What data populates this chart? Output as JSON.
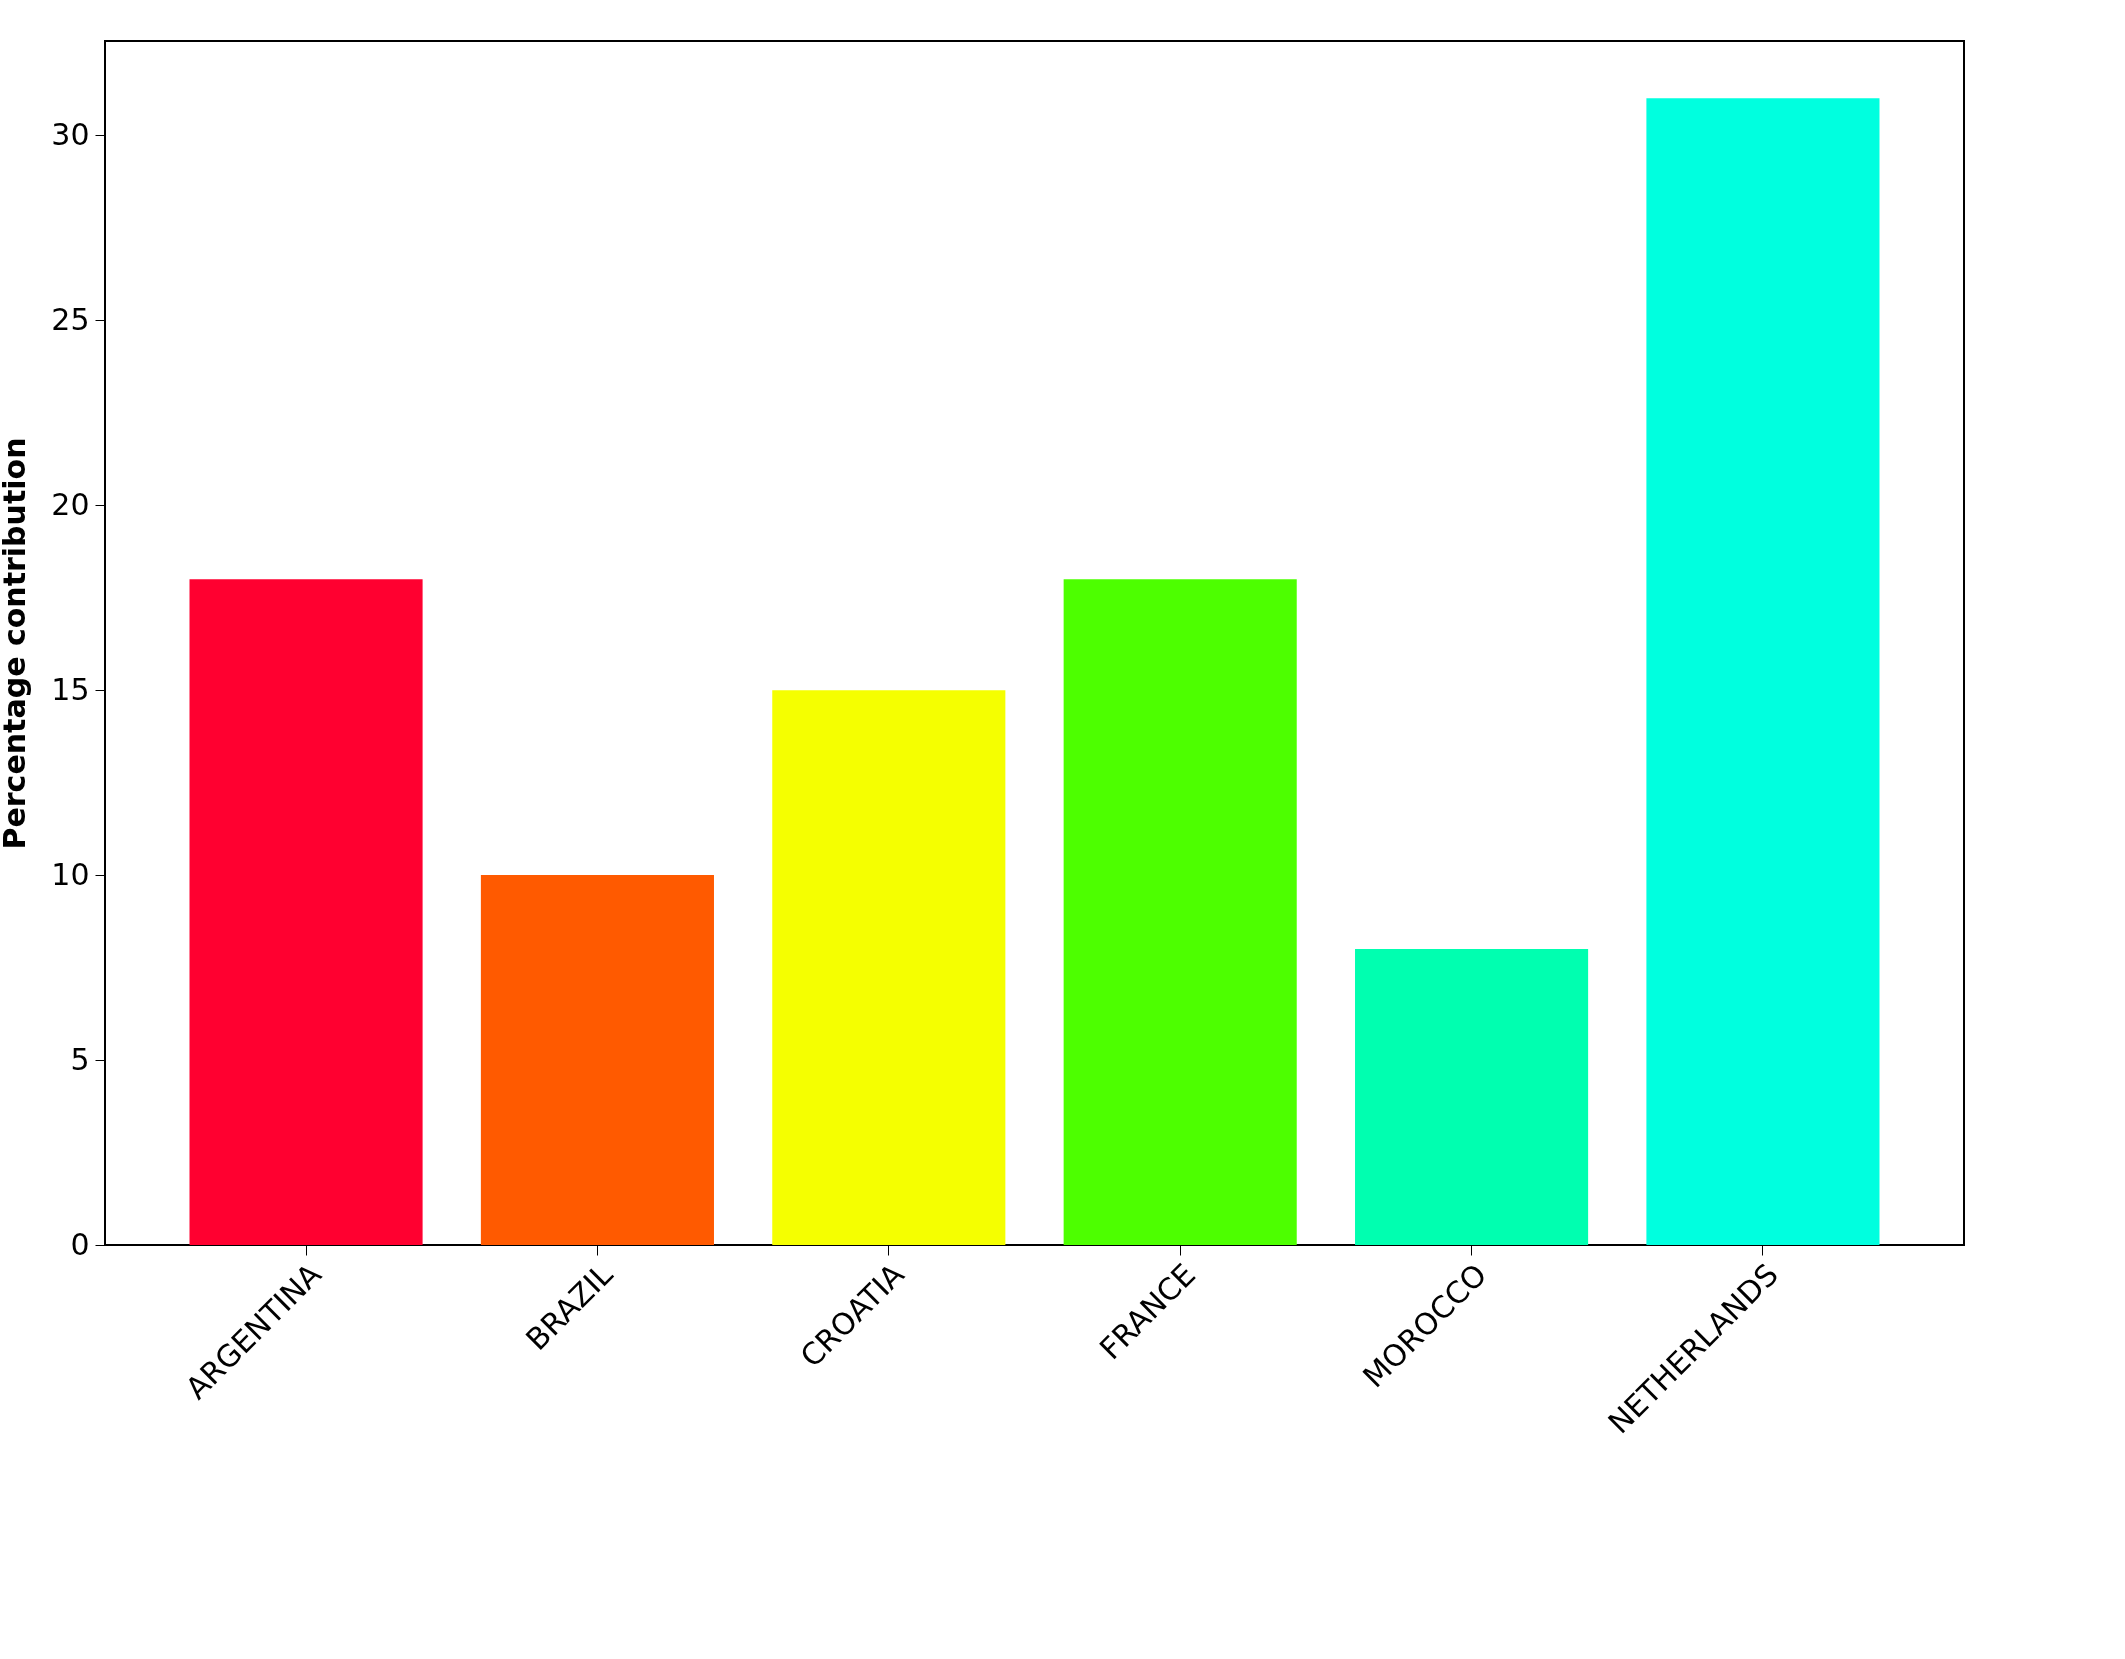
{
  "chart_data": {
    "type": "bar",
    "ylabel": "Percentage contribution",
    "categories": [
      "ARGENTINA",
      "BRAZIL",
      "CROATIA",
      "FRANCE",
      "MOROCCO",
      "NETHERLANDS"
    ],
    "values": [
      18,
      10,
      15,
      18,
      8,
      31
    ],
    "colors": [
      "#ff0030",
      "#ff5a00",
      "#f5ff00",
      "#4dff00",
      "#00ffb0",
      "#00ffdf"
    ],
    "ylim": [
      0,
      32.55
    ],
    "yticks": [
      0,
      5,
      10,
      15,
      20,
      25,
      30
    ],
    "grid": false,
    "legend": false
  }
}
